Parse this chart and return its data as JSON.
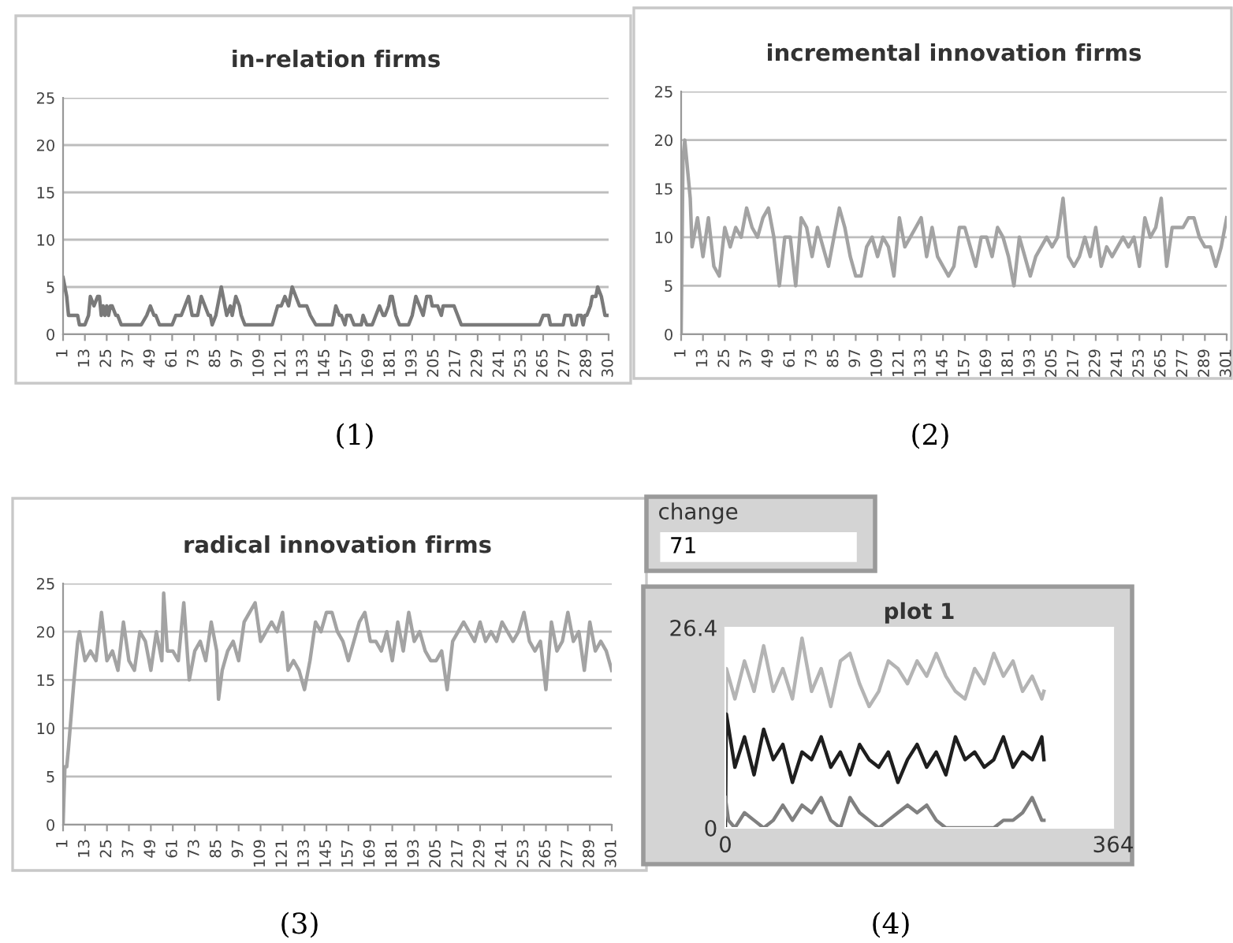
{
  "chart_data": [
    {
      "type": "line",
      "title": "in-relation firms",
      "annotations": [
        "(1)"
      ],
      "grid": "y",
      "xlim": [
        1,
        301
      ],
      "xticks": [
        1,
        13,
        25,
        37,
        49,
        61,
        73,
        85,
        97,
        109,
        121,
        133,
        145,
        157,
        169,
        181,
        193,
        205,
        217,
        229,
        241,
        253,
        265,
        277,
        289,
        301
      ],
      "ylim": [
        0,
        25
      ],
      "yticks": [
        0,
        5,
        10,
        15,
        20,
        25
      ],
      "series": [
        {
          "color": "#7a7a7a",
          "x": [
            1,
            3,
            4,
            9,
            10,
            13,
            15,
            16,
            18,
            20,
            21,
            22,
            23,
            24,
            25,
            26,
            27,
            28,
            30,
            31,
            33,
            44,
            47,
            49,
            51,
            52,
            54,
            61,
            63,
            66,
            68,
            70,
            71,
            72,
            75,
            77,
            79,
            81,
            82,
            83,
            85,
            87,
            88,
            90,
            91,
            93,
            94,
            96,
            98,
            99,
            101,
            116,
            119,
            121,
            123,
            125,
            126,
            127,
            129,
            131,
            135,
            137,
            140,
            149,
            151,
            153,
            154,
            156,
            157,
            159,
            161,
            165,
            166,
            168,
            171,
            175,
            177,
            178,
            180,
            181,
            182,
            184,
            186,
            191,
            193,
            195,
            197,
            199,
            201,
            203,
            204,
            207,
            209,
            210,
            216,
            218,
            220,
            263,
            265,
            268,
            269,
            276,
            277,
            280,
            281,
            283,
            284,
            286,
            287,
            288,
            289,
            291,
            292,
            294,
            295,
            297,
            299,
            301
          ],
          "values": [
            6,
            4,
            2,
            2,
            1,
            1,
            2,
            4,
            3,
            4,
            4,
            2,
            3,
            2,
            3,
            2,
            3,
            3,
            2,
            2,
            1,
            1,
            2,
            3,
            2,
            2,
            1,
            1,
            2,
            2,
            3,
            4,
            3,
            2,
            2,
            4,
            3,
            2,
            2,
            1,
            2,
            4,
            5,
            3,
            2,
            3,
            2,
            4,
            3,
            2,
            1,
            1,
            3,
            3,
            4,
            3,
            4,
            5,
            4,
            3,
            3,
            2,
            1,
            1,
            3,
            2,
            2,
            1,
            2,
            2,
            1,
            1,
            2,
            1,
            1,
            3,
            2,
            2,
            3,
            4,
            4,
            2,
            1,
            1,
            2,
            4,
            3,
            2,
            4,
            4,
            3,
            3,
            2,
            3,
            3,
            2,
            1,
            1,
            2,
            2,
            1,
            1,
            2,
            2,
            1,
            1,
            2,
            2,
            1,
            2,
            2,
            3,
            4,
            4,
            5,
            4,
            2,
            2
          ]
        }
      ]
    },
    {
      "type": "line",
      "title": "incremental innovation firms",
      "annotations": [
        "(2)"
      ],
      "grid": "y",
      "xlim": [
        1,
        301
      ],
      "xticks": [
        1,
        13,
        25,
        37,
        49,
        61,
        73,
        85,
        97,
        109,
        121,
        133,
        145,
        157,
        169,
        181,
        193,
        205,
        217,
        229,
        241,
        253,
        265,
        277,
        289,
        301
      ],
      "ylim": [
        0,
        25
      ],
      "yticks": [
        0,
        5,
        10,
        15,
        20,
        25
      ],
      "series": [
        {
          "color": "#a3a3a3",
          "x": [
            1,
            2,
            3,
            4,
            6,
            7,
            10,
            13,
            16,
            19,
            22,
            25,
            28,
            31,
            34,
            37,
            40,
            43,
            46,
            49,
            52,
            55,
            58,
            61,
            64,
            67,
            70,
            73,
            76,
            79,
            82,
            85,
            88,
            91,
            94,
            97,
            100,
            103,
            106,
            109,
            112,
            115,
            118,
            121,
            124,
            127,
            130,
            133,
            136,
            139,
            142,
            145,
            148,
            151,
            154,
            157,
            160,
            163,
            166,
            169,
            172,
            175,
            178,
            181,
            184,
            187,
            190,
            193,
            196,
            199,
            202,
            205,
            208,
            211,
            214,
            217,
            220,
            223,
            226,
            229,
            232,
            235,
            238,
            241,
            244,
            247,
            250,
            253,
            256,
            259,
            262,
            265,
            268,
            271,
            274,
            277,
            280,
            283,
            286,
            289,
            292,
            295,
            298,
            301
          ],
          "values": [
            0,
            18,
            20,
            18,
            14,
            9,
            12,
            8,
            12,
            7,
            6,
            11,
            9,
            11,
            10,
            13,
            11,
            10,
            12,
            13,
            10,
            5,
            10,
            10,
            5,
            12,
            11,
            8,
            11,
            9,
            7,
            10,
            13,
            11,
            8,
            6,
            6,
            9,
            10,
            8,
            10,
            9,
            6,
            12,
            9,
            10,
            11,
            12,
            8,
            11,
            8,
            7,
            6,
            7,
            11,
            11,
            9,
            7,
            10,
            10,
            8,
            11,
            10,
            8,
            5,
            10,
            8,
            6,
            8,
            9,
            10,
            9,
            10,
            14,
            8,
            7,
            8,
            10,
            8,
            11,
            7,
            9,
            8,
            9,
            10,
            9,
            10,
            7,
            12,
            10,
            11,
            14,
            7,
            11,
            11,
            11,
            12,
            12,
            10,
            9,
            9,
            7,
            9,
            12
          ]
        }
      ]
    },
    {
      "type": "line",
      "title": "radical innovation firms",
      "annotations": [
        "(3)"
      ],
      "grid": "y",
      "xlim": [
        1,
        301
      ],
      "xticks": [
        1,
        13,
        25,
        37,
        49,
        61,
        73,
        85,
        97,
        109,
        121,
        133,
        145,
        157,
        169,
        181,
        193,
        205,
        217,
        229,
        241,
        253,
        265,
        277,
        289,
        301
      ],
      "ylim": [
        0,
        25
      ],
      "yticks": [
        0,
        5,
        10,
        15,
        20,
        25
      ],
      "series": [
        {
          "color": "#a3a3a3",
          "x": [
            1,
            2,
            3,
            4,
            7,
            9,
            10,
            13,
            16,
            19,
            22,
            25,
            28,
            31,
            34,
            37,
            40,
            43,
            46,
            49,
            52,
            55,
            56,
            58,
            61,
            64,
            67,
            70,
            73,
            76,
            79,
            82,
            85,
            86,
            88,
            91,
            94,
            97,
            100,
            103,
            106,
            109,
            112,
            115,
            118,
            121,
            124,
            127,
            130,
            133,
            136,
            139,
            142,
            145,
            148,
            151,
            154,
            157,
            160,
            163,
            166,
            169,
            172,
            175,
            178,
            181,
            184,
            187,
            190,
            193,
            196,
            199,
            202,
            205,
            208,
            211,
            214,
            217,
            220,
            223,
            226,
            229,
            232,
            235,
            238,
            241,
            244,
            247,
            250,
            253,
            256,
            259,
            262,
            265,
            268,
            271,
            274,
            277,
            280,
            283,
            286,
            289,
            292,
            295,
            298,
            301
          ],
          "values": [
            0,
            6,
            6,
            8,
            15,
            19,
            20,
            17,
            18,
            17,
            22,
            17,
            18,
            16,
            21,
            17,
            16,
            20,
            19,
            16,
            20,
            17,
            24,
            18,
            18,
            17,
            23,
            15,
            18,
            19,
            17,
            21,
            18,
            13,
            16,
            18,
            19,
            17,
            21,
            22,
            23,
            19,
            20,
            21,
            20,
            22,
            16,
            17,
            16,
            14,
            17,
            21,
            20,
            22,
            22,
            20,
            19,
            17,
            19,
            21,
            22,
            19,
            19,
            18,
            20,
            17,
            21,
            18,
            22,
            19,
            20,
            18,
            17,
            17,
            18,
            14,
            19,
            20,
            21,
            20,
            19,
            21,
            19,
            20,
            19,
            21,
            20,
            19,
            20,
            22,
            19,
            18,
            19,
            14,
            21,
            18,
            19,
            22,
            19,
            20,
            16,
            21,
            18,
            19,
            18,
            16
          ]
        }
      ]
    },
    {
      "type": "other",
      "title": "change",
      "annotations": [
        "71"
      ]
    },
    {
      "type": "line",
      "title": "plot 1",
      "annotations": [
        "(4)"
      ],
      "grid": false,
      "xlim": [
        0,
        364
      ],
      "xticks": [
        0,
        364
      ],
      "ylim": [
        0,
        26.4
      ],
      "yticks": [
        0,
        26.4
      ],
      "series": [
        {
          "color": "#b4b4b4",
          "x": [
            0,
            1,
            9,
            18,
            27,
            36,
            45,
            54,
            63,
            72,
            81,
            90,
            99,
            108,
            117,
            126,
            135,
            144,
            153,
            162,
            171,
            180,
            189,
            198,
            207,
            216,
            225,
            234,
            243,
            252,
            261,
            270,
            279,
            288,
            297,
            299
          ],
          "values": [
            0,
            21,
            17,
            22,
            18,
            24,
            18,
            21,
            17,
            25,
            18,
            21,
            16,
            22,
            23,
            19,
            16,
            18,
            22,
            21,
            19,
            22,
            20,
            23,
            20,
            18,
            17,
            21,
            19,
            23,
            20,
            22,
            18,
            20,
            17,
            18
          ]
        },
        {
          "color": "#1e1e1e",
          "x": [
            0,
            1,
            9,
            18,
            27,
            36,
            45,
            54,
            63,
            72,
            81,
            90,
            99,
            108,
            117,
            126,
            135,
            144,
            153,
            162,
            171,
            180,
            189,
            198,
            207,
            216,
            225,
            234,
            243,
            252,
            261,
            270,
            279,
            288,
            297,
            299
          ],
          "values": [
            0,
            15,
            8,
            12,
            7,
            13,
            9,
            11,
            6,
            10,
            9,
            12,
            8,
            10,
            7,
            11,
            9,
            8,
            10,
            6,
            9,
            11,
            8,
            10,
            7,
            12,
            9,
            10,
            8,
            9,
            12,
            8,
            10,
            9,
            12,
            9
          ]
        },
        {
          "color": "#808080",
          "x": [
            0,
            3,
            9,
            18,
            27,
            36,
            45,
            54,
            63,
            72,
            81,
            90,
            99,
            108,
            117,
            126,
            135,
            144,
            153,
            162,
            171,
            180,
            189,
            198,
            207,
            216,
            225,
            234,
            243,
            252,
            261,
            270,
            279,
            288,
            297,
            299
          ],
          "values": [
            4,
            1,
            0,
            2,
            1,
            0,
            1,
            3,
            1,
            3,
            2,
            4,
            1,
            0,
            4,
            2,
            1,
            0,
            1,
            2,
            3,
            2,
            3,
            1,
            0,
            0,
            0,
            0,
            0,
            0,
            1,
            1,
            2,
            4,
            1,
            1
          ]
        }
      ]
    }
  ]
}
